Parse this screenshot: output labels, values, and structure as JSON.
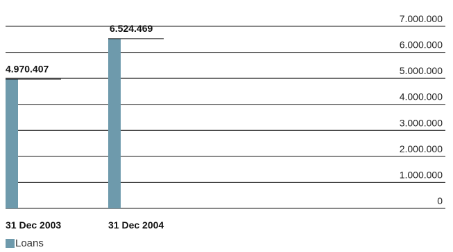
{
  "chart_data": {
    "type": "bar",
    "categories": [
      "31 Dec 2003",
      "31 Dec 2004"
    ],
    "series": [
      {
        "name": "Loans",
        "values": [
          4970407,
          6524469
        ],
        "color": "#6e9aac"
      }
    ],
    "data_labels": [
      "4.970.407",
      "6.524.469"
    ],
    "ylim": [
      0,
      7000000
    ],
    "yticks": [
      0,
      1000000,
      2000000,
      3000000,
      4000000,
      5000000,
      6000000,
      7000000
    ],
    "ytick_labels": [
      "0",
      "1.000.000",
      "2.000.000",
      "3.000.000",
      "4.000.000",
      "5.000.000",
      "6.000.000",
      "7.000.000"
    ],
    "grid": true,
    "legend_position": "bottom-left"
  },
  "legend": {
    "label": "Loans",
    "color": "#6e9aac"
  }
}
